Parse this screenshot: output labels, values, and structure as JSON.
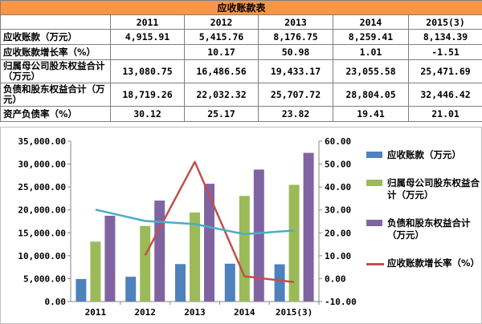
{
  "table": {
    "title": "应收账款表",
    "headers": [
      "",
      "2011",
      "2012",
      "2013",
      "2014",
      "2015(3)"
    ],
    "rows": [
      {
        "label": "应收账款（万元）",
        "cells": [
          "4,915.91",
          "5,415.76",
          "8,176.75",
          "8,259.41",
          "8,134.39"
        ]
      },
      {
        "label": "应收账款增长率（%）",
        "cells": [
          "",
          "10.17",
          "50.98",
          "1.01",
          "-1.51"
        ]
      },
      {
        "label": "归属母公司股东权益合计（万元）",
        "cells": [
          "13,080.75",
          "16,486.56",
          "19,433.17",
          "23,055.58",
          "25,471.69"
        ]
      },
      {
        "label": "负债和股东权益合计（万元）",
        "cells": [
          "18,719.26",
          "22,032.32",
          "25,707.72",
          "28,804.05",
          "32,446.42"
        ]
      },
      {
        "label": "资产负债率（%）",
        "cells": [
          "30.12",
          "25.17",
          "23.82",
          "19.41",
          "21.01"
        ]
      }
    ]
  },
  "chart_data": {
    "type": "bar",
    "categories": [
      "2011",
      "2012",
      "2013",
      "2014",
      "2015(3)"
    ],
    "series": [
      {
        "name": "应收账款（万元）",
        "axis": "left",
        "kind": "bar",
        "color": "#4f81bd",
        "values": [
          4915.91,
          5415.76,
          8176.75,
          8259.41,
          8134.39
        ]
      },
      {
        "name": "归属母公司股东权益合计（万元）",
        "axis": "left",
        "kind": "bar",
        "color": "#9bbb59",
        "values": [
          13080.75,
          16486.56,
          19433.17,
          23055.58,
          25471.69
        ]
      },
      {
        "name": "负债和股东权益合计（万元）",
        "axis": "left",
        "kind": "bar",
        "color": "#8064a2",
        "values": [
          18719.26,
          22032.32,
          25707.72,
          28804.05,
          32446.42
        ]
      },
      {
        "name": "应收账款增长率（%）",
        "axis": "right",
        "kind": "line",
        "color": "#c0504d",
        "values": [
          null,
          10.17,
          50.98,
          1.01,
          -1.51
        ]
      },
      {
        "name": "",
        "axis": "right",
        "kind": "line",
        "color": "#4bacc6",
        "values": [
          30.12,
          25.17,
          23.82,
          19.41,
          21.01
        ]
      }
    ],
    "ylim_left": [
      0,
      35000
    ],
    "ylim_right": [
      -10,
      60
    ],
    "yticks_left": [
      "0.00",
      "5,000.00",
      "10,000.00",
      "15,000.00",
      "20,000.00",
      "25,000.00",
      "30,000.00",
      "35,000.00"
    ],
    "yticks_right": [
      "-10.00",
      "0.00",
      "10.00",
      "20.00",
      "30.00",
      "40.00",
      "50.00",
      "60.00"
    ],
    "grid": false,
    "legend_position": "right"
  },
  "legend": {
    "items": [
      {
        "text": "应收账款（万元）"
      },
      {
        "text": "归属母公司股东权益合计（万元）"
      },
      {
        "text": "负债和股东权益合计（万元）"
      },
      {
        "text": "应收账款增长率（%）"
      }
    ]
  }
}
